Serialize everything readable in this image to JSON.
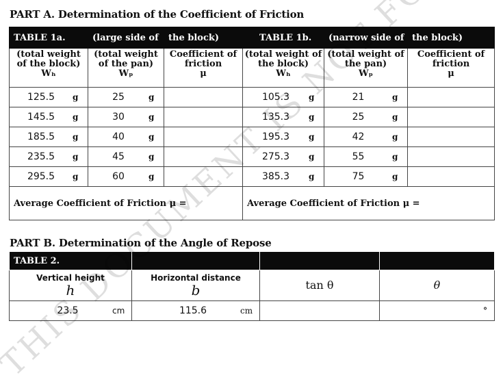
{
  "partA": {
    "title": "PART A.  Determination of the Coefficient of Friction",
    "table1a": {
      "header": [
        "TABLE 1a.",
        "(large side of",
        "the block)"
      ],
      "columns": [
        [
          "(total weight",
          "of the block)",
          "Wₕ"
        ],
        [
          "(total weight",
          "of the pan)",
          "Wₚ"
        ],
        [
          "Coefficient of",
          "friction",
          "μ"
        ]
      ],
      "rows": [
        {
          "wb": "125.5",
          "wp": "25"
        },
        {
          "wb": "145.5",
          "wp": "30"
        },
        {
          "wb": "185.5",
          "wp": "40"
        },
        {
          "wb": "235.5",
          "wp": "45"
        },
        {
          "wb": "295.5",
          "wp": "60"
        }
      ],
      "average_label": "Average Coefficient of Friction μ ="
    },
    "table1b": {
      "header": [
        "TABLE 1b.",
        "(narrow side of",
        "the block)"
      ],
      "columns": [
        [
          "(total weight of",
          "the block)",
          "Wₕ"
        ],
        [
          "(total weight of",
          "the pan)",
          "Wₚ"
        ],
        [
          "Coefficient of",
          "friction",
          "μ"
        ]
      ],
      "rows": [
        {
          "wb": "105.3",
          "wp": "21"
        },
        {
          "wb": "135.3",
          "wp": "25"
        },
        {
          "wb": "195.3",
          "wp": "42"
        },
        {
          "wb": "275.3",
          "wp": "55"
        },
        {
          "wb": "385.3",
          "wp": "75"
        }
      ],
      "average_label": "Average Coefficient of Friction μ ="
    },
    "unit_g": "g"
  },
  "partB": {
    "title": "PART B.  Determination of the Angle of Repose",
    "table2": {
      "header": "TABLE 2.",
      "col_h_label": "Vertical height",
      "col_h_sym": "h",
      "col_b_label": "Horizontal distance",
      "col_b_sym": "b",
      "col_tan": "tan θ",
      "col_theta": "θ",
      "h_value": "23.5",
      "h_unit": "cm",
      "b_value": "115.6",
      "b_unit": "cm",
      "degree_mark": "°"
    }
  },
  "watermark": "THIS DOCUMENT IS NOT FOR"
}
